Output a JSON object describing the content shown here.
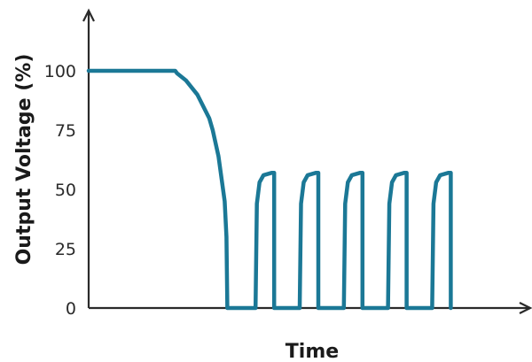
{
  "chart_data": {
    "type": "line",
    "title": "",
    "xlabel": "Time",
    "ylabel": "Output Voltage (%)",
    "yticks": [
      "0",
      "25",
      "50",
      "75",
      "100"
    ],
    "ylim": [
      0,
      125
    ],
    "xlim": [
      0,
      100
    ],
    "grid": false,
    "series": [
      {
        "color": "#1b7896",
        "x": [
          0,
          19.6,
          20,
          22,
          24.6,
          27.3,
          28.1,
          29.4,
          30.8,
          31.2,
          31.4,
          37.8,
          38.1,
          38.7,
          39.6,
          41.5,
          42,
          42,
          47.8,
          48.1,
          48.7,
          49.6,
          51.5,
          52,
          52,
          57.8,
          58.1,
          58.7,
          59.6,
          61.5,
          62,
          62,
          67.8,
          68.1,
          68.7,
          69.6,
          71.5,
          72,
          72,
          77.8,
          78.1,
          78.7,
          79.6,
          81.5,
          82,
          82
        ],
        "y": [
          100,
          100,
          99,
          96,
          90,
          80,
          75,
          64,
          45,
          30,
          0,
          0,
          44,
          53,
          56,
          57,
          57,
          0,
          0,
          44,
          53,
          56,
          57,
          57,
          0,
          0,
          44,
          53,
          56,
          57,
          57,
          0,
          0,
          44,
          53,
          56,
          57,
          57,
          0,
          0,
          44,
          53,
          56,
          57,
          57,
          0
        ]
      }
    ]
  }
}
